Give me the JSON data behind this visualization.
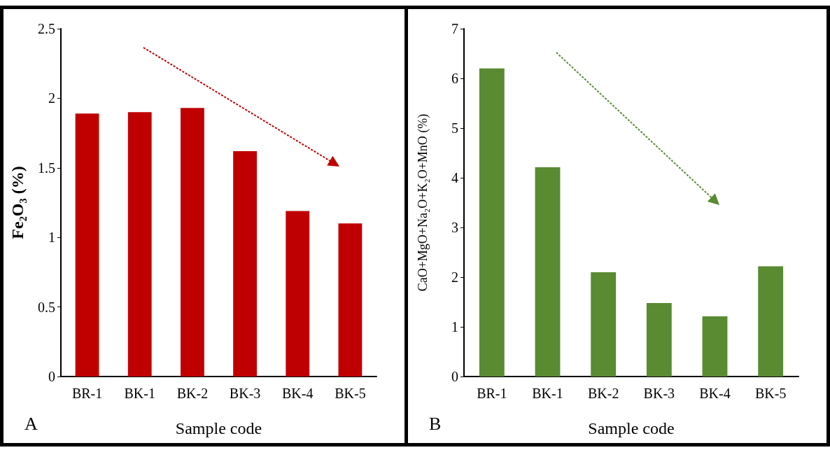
{
  "chart_data": [
    {
      "type": "bar",
      "xlabel": "Sample code",
      "ylabel": "Fe₂O₃ (%)",
      "categories": [
        "BR-1",
        "BK-1",
        "BK-2",
        "BK-3",
        "BK-4",
        "BK-5"
      ],
      "values": [
        1.89,
        1.9,
        1.93,
        1.62,
        1.19,
        1.1
      ],
      "color": "#c00000",
      "ylim": [
        0,
        2.5
      ],
      "yticks": [
        0,
        0.5,
        1,
        1.5,
        2,
        2.5
      ],
      "annotations": [
        "A"
      ]
    },
    {
      "type": "bar",
      "xlabel": "Sample code",
      "ylabel": "CaO+MgO+Na₂O+K₂O+MnO (%)",
      "categories": [
        "BR-1",
        "BK-1",
        "BK-2",
        "BK-3",
        "BK-4",
        "BK-5"
      ],
      "values": [
        6.2,
        4.21,
        2.1,
        1.48,
        1.21,
        2.22
      ],
      "color": "#5a8a32",
      "ylim": [
        0,
        7
      ],
      "yticks": [
        0,
        1,
        2,
        3,
        4,
        5,
        6,
        7
      ],
      "annotations": [
        "B"
      ]
    }
  ]
}
